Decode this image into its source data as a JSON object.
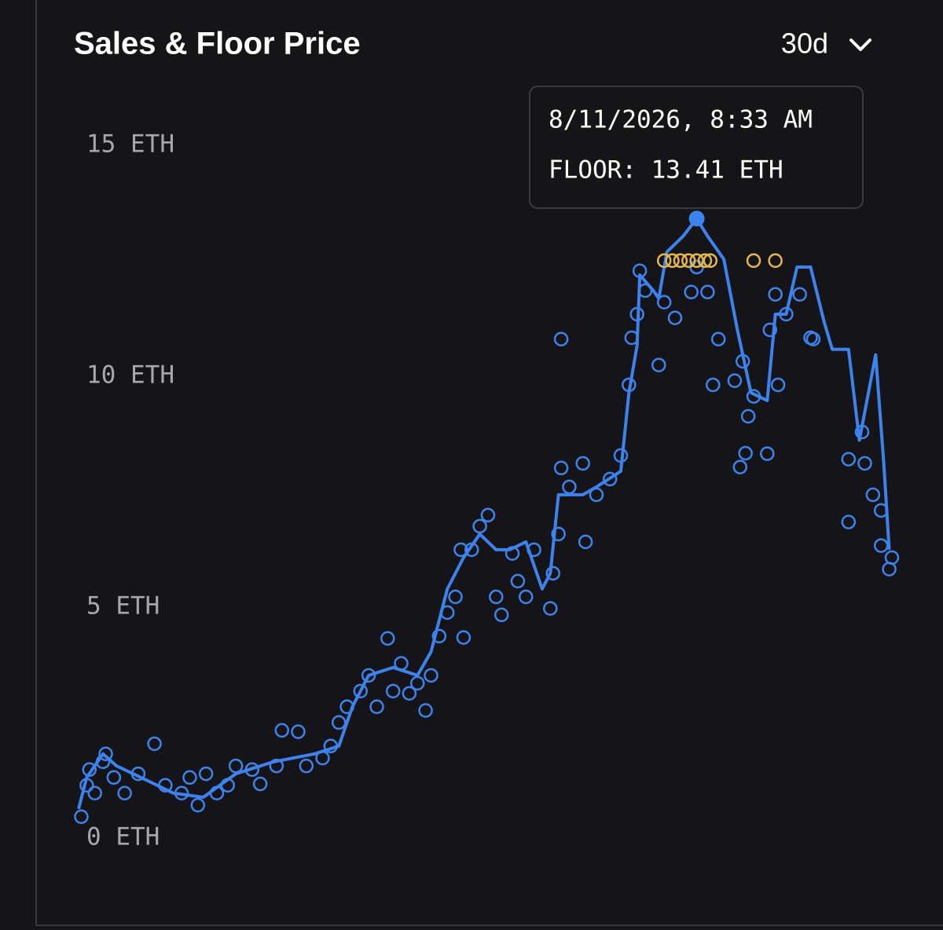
{
  "chart_data": {
    "type": "line",
    "title": "Sales & Floor Price",
    "range_selector": "30d",
    "grid": false,
    "xlim": [
      0,
      30
    ],
    "ylim": [
      -1.5,
      16
    ],
    "yticks": [
      {
        "value": 0,
        "label": "0 ETH"
      },
      {
        "value": 5,
        "label": "5 ETH"
      },
      {
        "value": 10,
        "label": "10 ETH"
      },
      {
        "value": 15,
        "label": "15 ETH"
      }
    ],
    "tooltip": {
      "date": "8/11/2026, 8:33 AM",
      "label": "FLOOR: 13.41 ETH"
    },
    "series": [
      {
        "type": "line",
        "color": "#3d83f0",
        "x": [
          0.0,
          0.3,
          0.9,
          1.4,
          2.3,
          3.5,
          4.6,
          5.8,
          7.2,
          8.7,
          9.6,
          10.1,
          10.7,
          11.6,
          12.5,
          13.0,
          13.6,
          14.2,
          14.8,
          15.4,
          15.9,
          16.5,
          17.1,
          17.4,
          17.7,
          18.6,
          19.1,
          20.0,
          20.3,
          20.6,
          20.7,
          21.2,
          21.4,
          21.7,
          22.3,
          22.8,
          23.2,
          23.8,
          24.3,
          24.8,
          25.4,
          25.7,
          26.1,
          26.5,
          27.0,
          27.5,
          27.8,
          28.4,
          28.8,
          29.4,
          29.7,
          29.9
        ],
        "values": [
          0.63,
          1.31,
          1.82,
          1.56,
          1.31,
          0.97,
          0.88,
          1.39,
          1.65,
          1.82,
          1.99,
          2.84,
          3.52,
          3.69,
          3.52,
          4.03,
          5.39,
          6.07,
          6.58,
          6.24,
          6.24,
          6.41,
          5.39,
          5.73,
          7.43,
          7.43,
          7.6,
          7.94,
          9.64,
          10.66,
          12.19,
          11.85,
          11.68,
          12.69,
          13.03,
          13.41,
          13.03,
          12.53,
          11.0,
          9.64,
          9.47,
          11.34,
          11.34,
          12.36,
          12.36,
          11.17,
          10.58,
          10.58,
          8.61,
          10.46,
          8.11,
          6.24
        ]
      },
      {
        "type": "scatter",
        "color": "#3d83f0",
        "x": [
          0.1,
          0.3,
          0.4,
          0.6,
          0.9,
          1.0,
          1.3,
          1.7,
          2.2,
          2.8,
          3.2,
          3.8,
          4.1,
          4.4,
          4.7,
          5.1,
          5.5,
          5.8,
          6.4,
          6.7,
          7.3,
          7.5,
          8.1,
          8.4,
          9.0,
          9.3,
          9.6,
          9.9,
          10.4,
          10.7,
          11.0,
          11.4,
          11.6,
          11.9,
          12.2,
          12.5,
          12.8,
          13.0,
          13.3,
          13.6,
          13.9,
          14.1,
          14.2,
          14.5,
          14.8,
          15.1,
          15.4,
          15.6,
          16.0,
          16.2,
          16.5,
          16.8,
          17.4,
          17.5,
          17.7,
          17.8,
          17.8,
          18.1,
          18.6,
          18.7,
          19.1,
          19.6,
          20.0,
          20.3,
          20.4,
          20.6,
          20.7,
          20.9,
          21.4,
          21.6,
          22.0,
          22.6,
          22.8,
          23.2,
          23.4,
          23.6,
          24.2,
          24.4,
          24.5,
          24.6,
          24.7,
          24.9,
          25.4,
          25.5,
          25.7,
          25.8,
          26.1,
          26.6,
          27.0,
          27.1,
          28.4,
          28.4,
          28.9,
          29.0,
          29.3,
          29.6,
          29.6,
          29.9,
          30.0
        ],
        "values": [
          0.46,
          1.14,
          1.48,
          0.97,
          1.65,
          1.82,
          1.31,
          0.97,
          1.39,
          2.04,
          1.14,
          0.97,
          1.31,
          0.71,
          1.39,
          0.97,
          1.14,
          1.56,
          1.48,
          1.17,
          1.56,
          2.33,
          2.3,
          1.56,
          1.73,
          1.99,
          2.5,
          2.84,
          3.18,
          3.52,
          2.84,
          4.32,
          3.18,
          3.78,
          3.13,
          3.35,
          2.76,
          3.52,
          4.37,
          4.88,
          5.22,
          6.24,
          4.34,
          6.24,
          6.75,
          6.99,
          5.22,
          4.83,
          6.16,
          5.56,
          5.22,
          6.24,
          4.97,
          5.73,
          6.58,
          10.8,
          8.01,
          7.6,
          8.11,
          6.41,
          7.43,
          7.77,
          8.28,
          9.81,
          10.83,
          11.34,
          12.28,
          11.85,
          10.24,
          11.6,
          11.26,
          11.82,
          12.36,
          11.82,
          9.81,
          10.8,
          9.9,
          8.03,
          10.32,
          8.33,
          9.13,
          9.56,
          8.32,
          11.0,
          11.77,
          9.81,
          11.34,
          11.77,
          10.83,
          10.8,
          6.84,
          8.2,
          8.79,
          8.11,
          7.43,
          7.09,
          6.33,
          5.82,
          6.07
        ]
      },
      {
        "type": "scatter",
        "color": "#e6b84c",
        "x": [
          21.6,
          21.9,
          22.2,
          22.5,
          22.8,
          23.1,
          23.3,
          24.9,
          25.7
        ],
        "values": [
          12.5,
          12.5,
          12.5,
          12.5,
          12.5,
          12.5,
          12.5,
          12.5,
          12.5
        ]
      }
    ]
  }
}
